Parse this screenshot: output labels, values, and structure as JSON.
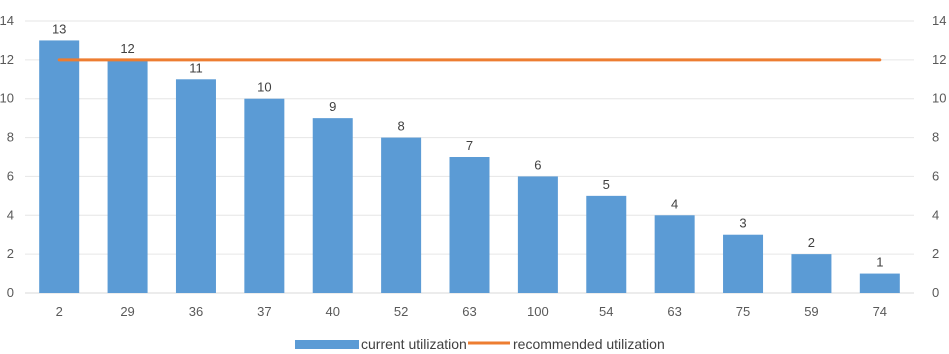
{
  "chart_data": {
    "type": "bar",
    "categories": [
      "2",
      "29",
      "36",
      "37",
      "40",
      "52",
      "63",
      "100",
      "54",
      "63",
      "75",
      "59",
      "74"
    ],
    "series": [
      {
        "name": "current utilization",
        "type": "bar",
        "values": [
          13,
          12,
          11,
          10,
          9,
          8,
          7,
          6,
          5,
          4,
          3,
          2,
          1
        ],
        "color": "#5B9BD5"
      },
      {
        "name": "recommended utilization",
        "type": "line",
        "values": [
          12,
          12,
          12,
          12,
          12,
          12,
          12,
          12,
          12,
          12,
          12,
          12,
          12
        ],
        "color": "#ED7D31"
      }
    ],
    "ylim": [
      0,
      14
    ],
    "yticks_left": [
      "0",
      "2",
      "4",
      "6",
      "8",
      "10",
      "12",
      "14"
    ],
    "yticks_right": [
      "0",
      "2",
      "4",
      "6",
      "8",
      "10",
      "12",
      "14"
    ],
    "data_labels": [
      "13",
      "12",
      "11",
      "10",
      "9",
      "8",
      "7",
      "6",
      "5",
      "4",
      "3",
      "2",
      "1"
    ],
    "grid": true,
    "legend_position": "bottom",
    "gridline_color": "#E6E6E6",
    "axis_color": "#D9D9D9"
  }
}
